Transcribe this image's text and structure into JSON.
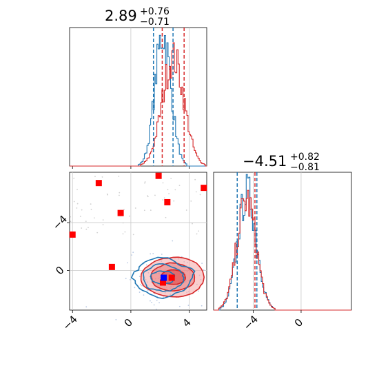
{
  "chart_data": {
    "type": "corner",
    "panels": {
      "param1_hist": {
        "title": {
          "value": "2.89",
          "plus": "+0.76",
          "minus": "−0.71"
        },
        "xlim": [
          -4.2,
          5.2
        ],
        "blue_lines": [
          1.55,
          2.89
        ],
        "red_lines": [
          2.15,
          3.65
        ],
        "series": [
          {
            "color": "#1f77b4",
            "center": 2.2,
            "sigma": 0.55,
            "peak": 0.95
          },
          {
            "color": "#d62728",
            "center": 2.9,
            "sigma": 0.75,
            "peak": 0.78
          }
        ]
      },
      "param2_hist": {
        "title": {
          "value": "−4.51",
          "plus": "+0.82",
          "minus": "−0.81"
        },
        "xlim": [
          -7.3,
          4.2
        ],
        "blue_lines": [
          -5.33,
          -3.69
        ],
        "red_lines": [
          -5.33,
          -3.85
        ],
        "series": [
          {
            "color": "#1f77b4",
            "center": -4.5,
            "sigma": 0.78,
            "peak": 0.85
          },
          {
            "color": "#d62728",
            "center": -4.55,
            "sigma": 0.8,
            "peak": 0.8
          }
        ]
      },
      "joint": {
        "xlim": [
          -4.2,
          5.2
        ],
        "ylim": [
          -7.3,
          4.2
        ],
        "xticks": [
          "−4",
          "0",
          "4"
        ],
        "yticks": [
          "−4",
          "0"
        ],
        "red_points": [
          {
            "x": -2.2,
            "y": 3.3
          },
          {
            "x": 1.9,
            "y": 3.9
          },
          {
            "x": 5.0,
            "y": 2.9
          },
          {
            "x": 2.5,
            "y": 1.7
          },
          {
            "x": -0.7,
            "y": 0.8
          },
          {
            "x": -4.0,
            "y": -1.0
          },
          {
            "x": -1.3,
            "y": -3.7
          },
          {
            "x": 2.8,
            "y": -4.6
          },
          {
            "x": 2.2,
            "y": -5.0
          }
        ],
        "blue_point": {
          "x": 2.25,
          "y": -4.6
        },
        "blue_contours": {
          "center": [
            2.2,
            -4.6
          ],
          "radii": [
            [
              2.1,
              1.6
            ],
            [
              1.45,
              1.05
            ],
            [
              0.8,
              0.55
            ]
          ]
        },
        "red_contours": {
          "center": [
            2.9,
            -4.55
          ],
          "radii": [
            [
              2.2,
              1.65
            ],
            [
              1.5,
              1.15
            ],
            [
              0.85,
              0.6
            ]
          ]
        }
      }
    },
    "shared_xticks_bottom_right": [
      "−4",
      "0"
    ]
  },
  "colors": {
    "blue": "#1f77b4",
    "red": "#d62728",
    "grid": "#c8c8c8",
    "marker_red": "#ff0000",
    "marker_blue": "#0000ff"
  }
}
